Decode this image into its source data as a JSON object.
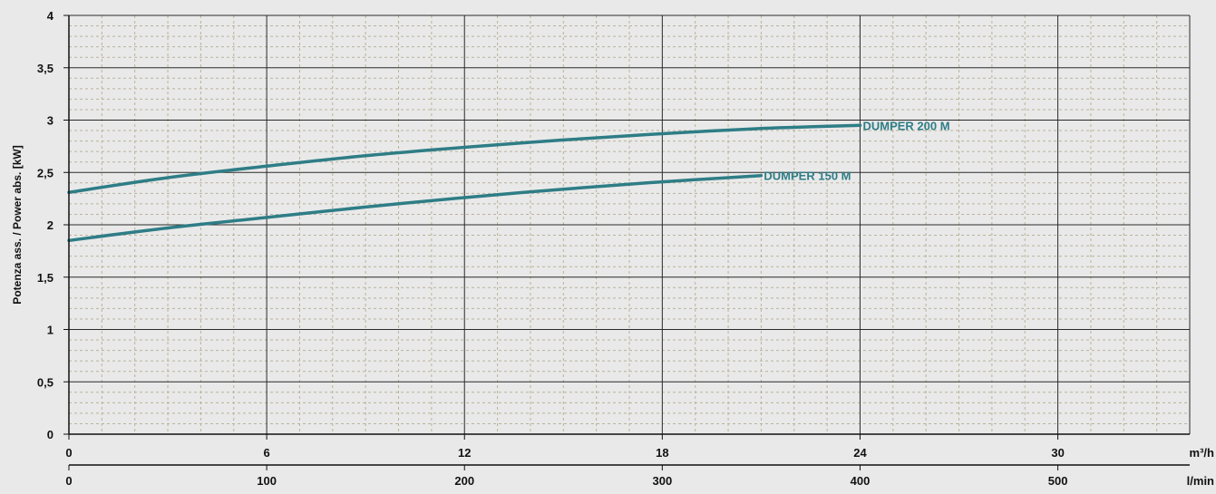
{
  "chart_data": {
    "type": "line",
    "ylabel": "Potenza ass. / Power abs. [kW]",
    "ylim": [
      0,
      4
    ],
    "y_ticks": [
      "0",
      "0,5",
      "1",
      "1,5",
      "2",
      "2,5",
      "3",
      "3,5",
      "4"
    ],
    "x_axes": [
      {
        "unit": "m³/h",
        "range": [
          0,
          34
        ],
        "ticks": [
          {
            "v": 0,
            "label": "0"
          },
          {
            "v": 6,
            "label": "6"
          },
          {
            "v": 12,
            "label": "12"
          },
          {
            "v": 18,
            "label": "18"
          },
          {
            "v": 24,
            "label": "24"
          },
          {
            "v": 30,
            "label": "30"
          }
        ]
      },
      {
        "unit": "l/min",
        "ticks": [
          {
            "v": 0,
            "label": "0"
          },
          {
            "v": 6,
            "label": "100"
          },
          {
            "v": 12,
            "label": "200"
          },
          {
            "v": 18,
            "label": "300"
          },
          {
            "v": 24,
            "label": "400"
          },
          {
            "v": 30,
            "label": "500"
          }
        ]
      }
    ],
    "grid": true,
    "series": [
      {
        "name": "DUMPER 200 M",
        "color": "#2e7d86",
        "x": [
          0,
          3,
          6,
          9,
          12,
          15,
          18,
          21,
          24
        ],
        "y": [
          2.31,
          2.45,
          2.56,
          2.66,
          2.74,
          2.81,
          2.87,
          2.92,
          2.95
        ]
      },
      {
        "name": "DUMPER 150 M",
        "color": "#2e7d86",
        "x": [
          0,
          3,
          6,
          9,
          12,
          15,
          18,
          21
        ],
        "y": [
          1.85,
          1.97,
          2.07,
          2.17,
          2.26,
          2.34,
          2.41,
          2.47
        ]
      }
    ]
  }
}
